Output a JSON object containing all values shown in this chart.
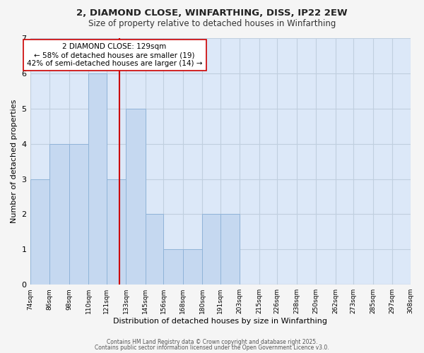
{
  "title1": "2, DIAMOND CLOSE, WINFARTHING, DISS, IP22 2EW",
  "title2": "Size of property relative to detached houses in Winfarthing",
  "xlabel": "Distribution of detached houses by size in Winfarthing",
  "ylabel": "Number of detached properties",
  "bin_edges": [
    74,
    86,
    98,
    110,
    121,
    133,
    145,
    156,
    168,
    180,
    191,
    203,
    215,
    226,
    238,
    250,
    262,
    273,
    285,
    297,
    308
  ],
  "bar_heights": [
    3,
    4,
    4,
    6,
    3,
    5,
    2,
    1,
    1,
    2,
    2,
    0,
    0,
    0,
    0,
    0,
    0,
    0,
    0,
    0
  ],
  "bar_color": "#c5d8f0",
  "bar_edgecolor": "#90b4d8",
  "vline_x": 129,
  "vline_color": "#cc0000",
  "annotation_text": "2 DIAMOND CLOSE: 129sqm\n← 58% of detached houses are smaller (19)\n42% of semi-detached houses are larger (14) →",
  "annotation_box_edgecolor": "#cc0000",
  "annotation_box_facecolor": "#ffffff",
  "ylim": [
    0,
    7
  ],
  "yticks": [
    0,
    1,
    2,
    3,
    4,
    5,
    6,
    7
  ],
  "background_color": "#f5f5f5",
  "plot_bg_color": "#dce8f8",
  "grid_color": "#c0cfdf",
  "footer1": "Contains HM Land Registry data © Crown copyright and database right 2025.",
  "footer2": "Contains public sector information licensed under the Open Government Licence v3.0."
}
